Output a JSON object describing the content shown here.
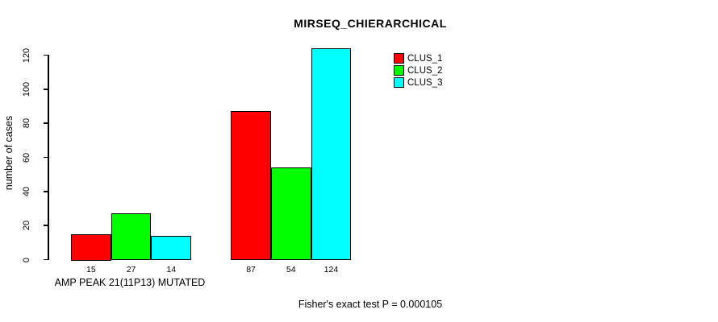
{
  "chart_data": {
    "type": "bar",
    "title": "MIRSEQ_CHIERARCHICAL",
    "ylabel": "number of cases",
    "xlabel": "",
    "categories": [
      "AMP PEAK 21(11P13) MUTATED",
      ""
    ],
    "series": [
      {
        "name": "CLUS_1",
        "color": "#ff0000",
        "values": [
          15,
          87
        ]
      },
      {
        "name": "CLUS_2",
        "color": "#00ff00",
        "values": [
          27,
          54
        ]
      },
      {
        "name": "CLUS_3",
        "color": "#00ffff",
        "values": [
          14,
          124
        ]
      }
    ],
    "yticks": [
      0,
      20,
      40,
      60,
      80,
      100,
      120
    ],
    "ylim": [
      0,
      124
    ],
    "grid": false,
    "legend_position": "top-right",
    "bar_outline_color": "#000000",
    "annotation": "Fisher's exact test P = 0.000105"
  }
}
